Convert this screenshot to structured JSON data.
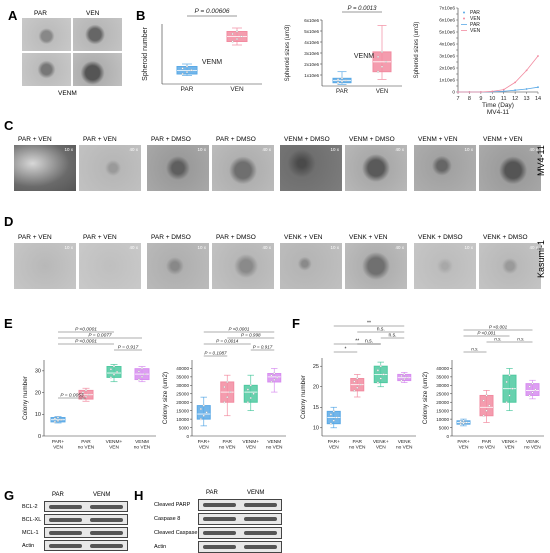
{
  "panels": {
    "A": {
      "letter": "A",
      "label_venm": "VENM",
      "label_par": "PAR",
      "label_ven": "VEN"
    },
    "B": {
      "letter": "B"
    },
    "C": {
      "letter": "C",
      "row_label": "MV4-11",
      "images": [
        "PAR + VEN",
        "PAR + VEN",
        "PAR + DMSO",
        "PAR + DMSO",
        "VENM + DMSO",
        "VENM + DMSO",
        "VENM + VEN",
        "VENM + VEN"
      ],
      "mags": [
        "10 x",
        "40 x",
        "10 x",
        "40 x",
        "10 x",
        "40 x",
        "10 x",
        "40 x"
      ]
    },
    "D": {
      "letter": "D",
      "row_label": "Kasumi-1",
      "images": [
        "PAR + VEN",
        "PAR + VEN",
        "PAR + DMSO",
        "PAR + DMSO",
        "VENK + VEN",
        "VENK + VEN",
        "VENK + DMSO",
        "VENK + DMSO"
      ],
      "mags": [
        "10 x",
        "40 x",
        "10 x",
        "40 x",
        "10 x",
        "40 x",
        "10 x",
        "40 x"
      ]
    },
    "E": {
      "letter": "E"
    },
    "F": {
      "letter": "F"
    },
    "G": {
      "letter": "G",
      "cols": [
        "PAR",
        "VENM"
      ],
      "rows": [
        "BCL-2",
        "BCL-XL",
        "MCL-1",
        "Actin"
      ]
    },
    "H": {
      "letter": "H",
      "cols": [
        "PAR",
        "VENM"
      ],
      "rows": [
        "Cleaved PARP",
        "Caspase 8",
        "Cleaved Caspase 9",
        "Actin"
      ]
    }
  },
  "chart_data": [
    {
      "id": "B1",
      "type": "box",
      "title": "",
      "ylabel": "Spheroid number",
      "categories": [
        "PAR",
        "VEN"
      ],
      "annotation": "VENM",
      "pvalue": "P = 0.00606",
      "ylim": [
        40,
        160
      ],
      "yticks": [],
      "boxes": [
        {
          "cat": "PAR",
          "q1": 60,
          "median": 67,
          "q3": 75,
          "min": 57,
          "max": 80,
          "color": "#5aa9e6"
        },
        {
          "cat": "VEN",
          "q1": 125,
          "median": 135,
          "q3": 145,
          "min": 118,
          "max": 152,
          "color": "#f28ba0"
        }
      ]
    },
    {
      "id": "B2",
      "type": "box",
      "title": "",
      "ylabel": "Spheroid sizes (um3)",
      "categories": [
        "PAR",
        "VEN"
      ],
      "annotation": "VENM",
      "pvalue": "P = 0.0013",
      "ylim": [
        0,
        6000000
      ],
      "yticks": [
        "1x10e6",
        "2x10e6",
        "3x10e6",
        "4x10e6",
        "5x10e6",
        "6x10e6"
      ],
      "boxes": [
        {
          "cat": "PAR",
          "q1": 300000,
          "median": 500000,
          "q3": 700000,
          "min": 150000,
          "max": 1300000,
          "color": "#5aa9e6"
        },
        {
          "cat": "VEN",
          "q1": 1300000,
          "median": 2200000,
          "q3": 3100000,
          "min": 600000,
          "max": 5500000,
          "color": "#f28ba0"
        }
      ]
    },
    {
      "id": "B3",
      "type": "line",
      "title": "",
      "xlabel": "Time (Day)",
      "subtitle": "MV4-11",
      "ylabel": "Spheroid sizes (um3)",
      "x": [
        7,
        8,
        9,
        10,
        11,
        12,
        13,
        14
      ],
      "xlim": [
        7,
        14
      ],
      "ylim": [
        0,
        7000000
      ],
      "yticks": [
        "0",
        "5x10e5",
        "1x10e6",
        "1.5x10e6",
        "2x10e6",
        "2.5x10e6",
        "3x10e6",
        "3.5x10e6",
        "4x10e6",
        "4.5x10e6",
        "5x10e6",
        "5.5x10e6",
        "6x10e6",
        "6.5x10e6",
        "7x10e6"
      ],
      "legend": [
        "PAR",
        "VEN",
        "PAR",
        "VEN"
      ],
      "series": [
        {
          "name": "PAR",
          "values": [
            0,
            0,
            0,
            20000,
            60000,
            150000,
            250000,
            400000
          ],
          "color": "#5aa9e6"
        },
        {
          "name": "VEN",
          "values": [
            0,
            0,
            0,
            50000,
            200000,
            800000,
            1800000,
            3000000
          ],
          "color": "#f28ba0"
        }
      ]
    },
    {
      "id": "E1",
      "type": "box",
      "ylabel": "Colony number",
      "ylim": [
        0,
        35
      ],
      "yticks": [
        "0",
        "10",
        "20",
        "30"
      ],
      "categories": [
        "PAR+ VEN",
        "PAR no VEN",
        "VENM+ VEN",
        "VENM no VEN"
      ],
      "pvals": [
        "P <0.0001",
        "P = 0.0077",
        "P <0.0001",
        "P = 0.917",
        "P = 0.0053"
      ],
      "boxes": [
        {
          "q1": 6.5,
          "median": 7.5,
          "q3": 8.5,
          "min": 6,
          "max": 9,
          "color": "#5aa9e6"
        },
        {
          "q1": 17,
          "median": 19,
          "q3": 21,
          "min": 16,
          "max": 22,
          "color": "#f28ba0"
        },
        {
          "q1": 27,
          "median": 29,
          "q3": 32,
          "min": 25,
          "max": 33,
          "color": "#4ec9a0"
        },
        {
          "q1": 26,
          "median": 28.5,
          "q3": 31,
          "min": 25,
          "max": 32,
          "color": "#d78df0"
        }
      ]
    },
    {
      "id": "E2",
      "type": "box",
      "ylabel": "Colony size (um2)",
      "ylim": [
        0,
        45000
      ],
      "yticks": [
        "0",
        "5000",
        "10000",
        "15000",
        "20000",
        "25000",
        "30000",
        "35000",
        "40000"
      ],
      "categories": [
        "PAR+ VEN",
        "PAR no VEN",
        "VENM+ VEN",
        "VENM no VEN"
      ],
      "pvals": [
        "P <0.0001",
        "P = 0.998",
        "P = 0.0014",
        "P = 0.917",
        "P = 0.1087"
      ],
      "boxes": [
        {
          "q1": 10000,
          "median": 13000,
          "q3": 18000,
          "min": 6000,
          "max": 23000,
          "color": "#5aa9e6"
        },
        {
          "q1": 20000,
          "median": 26000,
          "q3": 32000,
          "min": 12000,
          "max": 36000,
          "color": "#f28ba0"
        },
        {
          "q1": 20000,
          "median": 26000,
          "q3": 30000,
          "min": 15000,
          "max": 36000,
          "color": "#4ec9a0"
        },
        {
          "q1": 32000,
          "median": 35000,
          "q3": 37000,
          "min": 26000,
          "max": 40000,
          "color": "#d78df0"
        }
      ]
    },
    {
      "id": "F1",
      "type": "box",
      "ylabel": "Colony number",
      "ylim": [
        8,
        27
      ],
      "yticks": [
        "10",
        "15",
        "20",
        "25"
      ],
      "categories": [
        "PAR+ VEN",
        "PAR no VEN",
        "VENK+ VEN",
        "VENK no VEN"
      ],
      "pvals": [
        "**",
        "n.s.",
        "n.s.",
        "**",
        "n.s.",
        "*"
      ],
      "boxes": [
        {
          "q1": 11,
          "median": 12.5,
          "q3": 14,
          "min": 10,
          "max": 15,
          "color": "#5aa9e6"
        },
        {
          "q1": 19,
          "median": 20.5,
          "q3": 22,
          "min": 17.5,
          "max": 23,
          "color": "#f28ba0"
        },
        {
          "q1": 21,
          "median": 23,
          "q3": 25,
          "min": 20,
          "max": 26,
          "color": "#4ec9a0"
        },
        {
          "q1": 21.5,
          "median": 22.2,
          "q3": 23,
          "min": 21,
          "max": 23.5,
          "color": "#d78df0"
        }
      ]
    },
    {
      "id": "F2",
      "type": "box",
      "ylabel": "Colony size (um2)",
      "ylim": [
        0,
        45000
      ],
      "yticks": [
        "0",
        "5000",
        "10000",
        "15000",
        "20000",
        "25000",
        "30000",
        "35000",
        "40000"
      ],
      "categories": [
        "PAR+ VEN",
        "PAR no VEN",
        "VENK+ VEN",
        "VENK no VEN"
      ],
      "pvals": [
        "P <0.001",
        "P <0.001",
        "n.s.",
        "n.s.",
        "n.s."
      ],
      "boxes": [
        {
          "q1": 7000,
          "median": 8000,
          "q3": 9000,
          "min": 6000,
          "max": 10000,
          "color": "#5aa9e6"
        },
        {
          "q1": 12000,
          "median": 17000,
          "q3": 24000,
          "min": 8000,
          "max": 27000,
          "color": "#f28ba0"
        },
        {
          "q1": 20000,
          "median": 28000,
          "q3": 36000,
          "min": 15000,
          "max": 40000,
          "color": "#4ec9a0"
        },
        {
          "q1": 24000,
          "median": 27000,
          "q3": 31000,
          "min": 22000,
          "max": 33000,
          "color": "#d78df0"
        }
      ]
    }
  ]
}
